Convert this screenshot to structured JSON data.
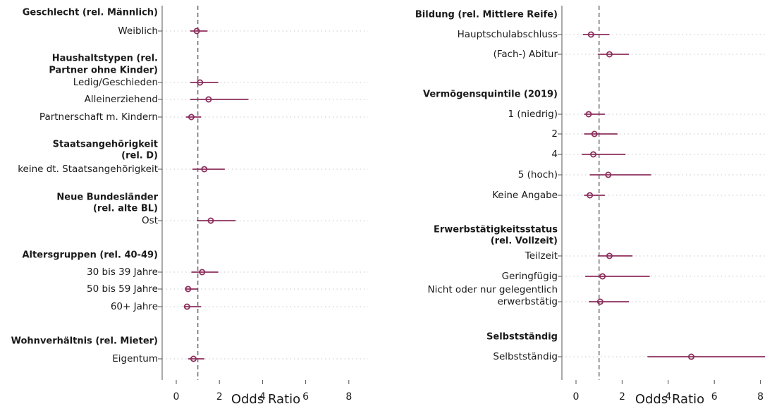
{
  "chart_data": [
    {
      "type": "scatter",
      "variant": "coefficient-plot-with-confidence-intervals",
      "xlabel": "Odds Ratio",
      "xticks": [
        0,
        2,
        4,
        6,
        8
      ],
      "xlim": [
        -0.2,
        7.6
      ],
      "reference_line": 1,
      "colors": {
        "marker": "#8b2e5c",
        "reference": "#707070",
        "grid": "#c8c8c8"
      },
      "groups": [
        {
          "header": [
            "Geschlecht (rel. Männlich)"
          ],
          "rows": [
            {
              "label": [
                "Weiblich"
              ],
              "or": 0.95,
              "lo": 0.65,
              "hi": 1.45
            }
          ]
        },
        {
          "header": [
            "Haushaltstypen (rel.",
            "Partner ohne Kinder)"
          ],
          "rows": [
            {
              "label": [
                "Ledig/Geschieden"
              ],
              "or": 1.1,
              "lo": 0.65,
              "hi": 1.95
            },
            {
              "label": [
                "Alleinerziehend"
              ],
              "or": 1.5,
              "lo": 0.65,
              "hi": 3.35
            },
            {
              "label": [
                "Partnerschaft m. Kindern"
              ],
              "or": 0.7,
              "lo": 0.45,
              "hi": 1.15
            }
          ]
        },
        {
          "header": [
            "Staatsangehörigkeit",
            "(rel. D)"
          ],
          "rows": [
            {
              "label": [
                "keine dt. Staatsangehörigkeit"
              ],
              "or": 1.3,
              "lo": 0.75,
              "hi": 2.25
            }
          ]
        },
        {
          "header": [
            "Neue Bundesländer",
            "(rel. alte BL)"
          ],
          "rows": [
            {
              "label": [
                "Ost"
              ],
              "or": 1.6,
              "lo": 0.95,
              "hi": 2.75
            }
          ]
        },
        {
          "header": [
            "Altersgruppen (rel. 40-49)"
          ],
          "rows": [
            {
              "label": [
                "30 bis 39 Jahre"
              ],
              "or": 1.2,
              "lo": 0.7,
              "hi": 1.95
            },
            {
              "label": [
                "50 bis 59 Jahre"
              ],
              "or": 0.55,
              "lo": 0.4,
              "hi": 1.0
            },
            {
              "label": [
                "60+ Jahre"
              ],
              "or": 0.5,
              "lo": 0.35,
              "hi": 1.15
            }
          ]
        },
        {
          "header": [
            "Wohnverhältnis (rel. Mieter)"
          ],
          "rows": [
            {
              "label": [
                "Eigentum"
              ],
              "or": 0.8,
              "lo": 0.55,
              "hi": 1.3
            }
          ]
        }
      ]
    },
    {
      "type": "scatter",
      "variant": "coefficient-plot-with-confidence-intervals",
      "xlabel": "Odds Ratio",
      "xticks": [
        0,
        2,
        4,
        6,
        8
      ],
      "xlim": [
        -0.2,
        8.2
      ],
      "reference_line": 1,
      "colors": {
        "marker": "#8b2e5c",
        "reference": "#707070",
        "grid": "#c8c8c8"
      },
      "groups": [
        {
          "header": [
            "Bildung (rel. Mittlere Reife)"
          ],
          "rows": [
            {
              "label": [
                "Hauptschulabschluss"
              ],
              "or": 0.65,
              "lo": 0.3,
              "hi": 1.45
            },
            {
              "label": [
                "(Fach-) Abitur"
              ],
              "or": 1.45,
              "lo": 0.95,
              "hi": 2.3
            }
          ]
        },
        {
          "header": [
            "Vermögensquintile (2019)"
          ],
          "rows": [
            {
              "label": [
                "1 (niedrig)"
              ],
              "or": 0.55,
              "lo": 0.35,
              "hi": 1.25
            },
            {
              "label": [
                "2"
              ],
              "or": 0.8,
              "lo": 0.35,
              "hi": 1.8
            },
            {
              "label": [
                "4"
              ],
              "or": 0.75,
              "lo": 0.25,
              "hi": 2.15
            },
            {
              "label": [
                "5 (hoch)"
              ],
              "or": 1.4,
              "lo": 0.6,
              "hi": 3.25
            },
            {
              "label": [
                "Keine Angabe"
              ],
              "or": 0.6,
              "lo": 0.35,
              "hi": 1.25
            }
          ]
        },
        {
          "header": [
            "Erwerbstätigkeitsstatus",
            "(rel. Vollzeit)"
          ],
          "rows": [
            {
              "label": [
                "Teilzeit"
              ],
              "or": 1.45,
              "lo": 0.95,
              "hi": 2.45
            },
            {
              "label": [
                "Geringfügig"
              ],
              "or": 1.15,
              "lo": 0.4,
              "hi": 3.2
            },
            {
              "label": [
                "Nicht oder nur gelegentlich",
                "erwerbstätig"
              ],
              "or": 1.05,
              "lo": 0.55,
              "hi": 2.3
            }
          ]
        },
        {
          "header": [
            "Selbstständig"
          ],
          "rows": [
            {
              "label": [
                "Selbstständig"
              ],
              "or": 5.0,
              "lo": 3.1,
              "hi": 8.2
            }
          ]
        }
      ]
    }
  ]
}
